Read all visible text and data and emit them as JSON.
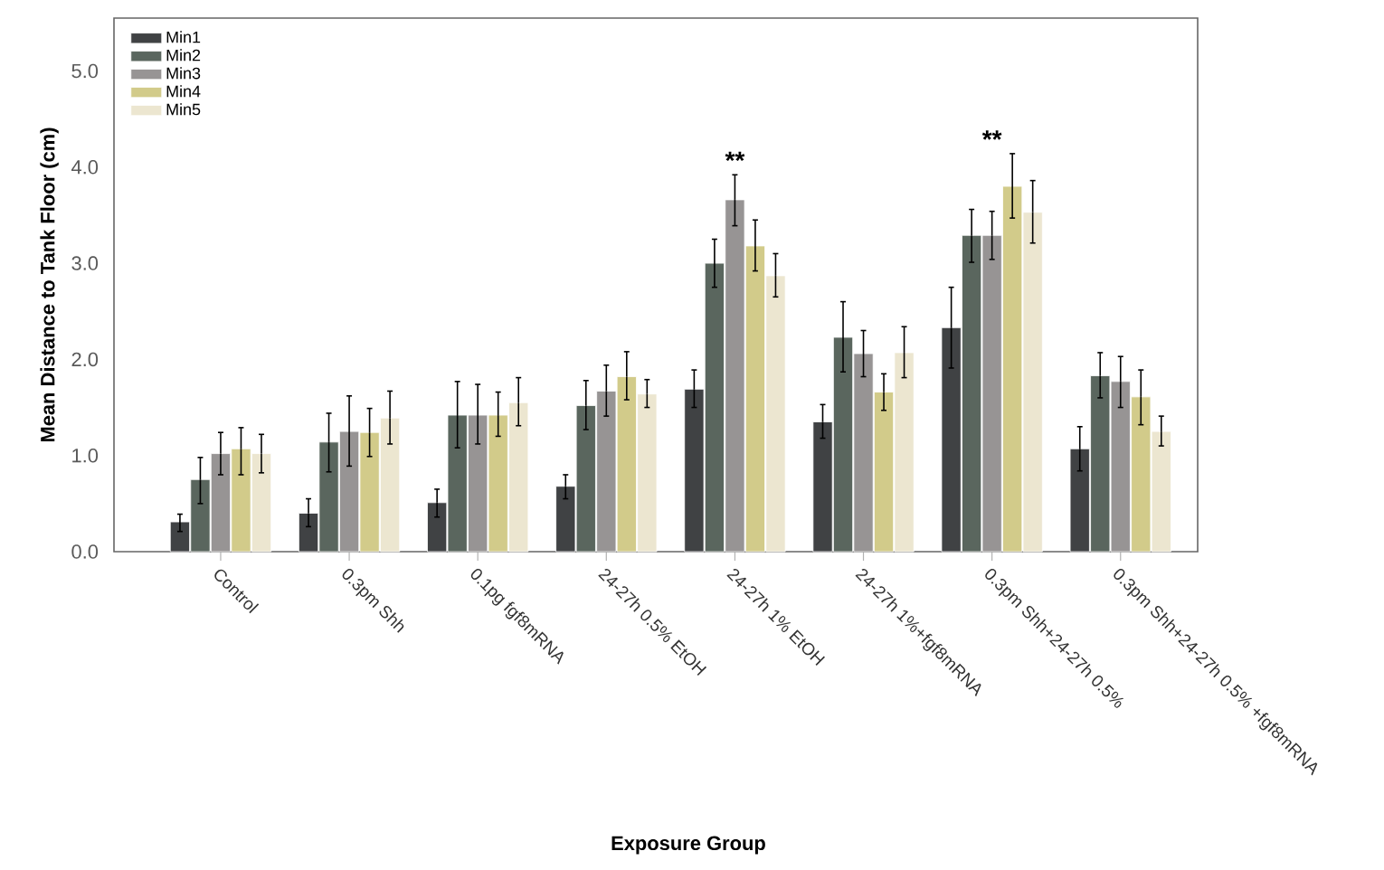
{
  "chart_data": {
    "type": "bar",
    "xlabel": "Exposure Group",
    "ylabel": "Mean Distance to Tank Floor (cm)",
    "categories": [
      "Control",
      "0.3pm Shh",
      "0.1pg fgf8mRNA",
      "24-27h 0.5% EtOH",
      "24-27h 1% EtOH",
      "24-27h 1%+fgf8mRNA",
      "0.3pm Shh+24-27h 0.5%",
      "0.3pm Shh+24-27h 0.5% +fgf8mRNA"
    ],
    "series": [
      {
        "name": "Min1",
        "color": "#404244",
        "values": [
          0.31,
          0.4,
          0.51,
          0.68,
          1.69,
          1.35,
          2.33,
          1.07
        ],
        "errors": [
          [
            0.21,
            0.39
          ],
          [
            0.26,
            0.55
          ],
          [
            0.36,
            0.65
          ],
          [
            0.55,
            0.8
          ],
          [
            1.5,
            1.89
          ],
          [
            1.18,
            1.53
          ],
          [
            1.91,
            2.75
          ],
          [
            0.84,
            1.3
          ]
        ]
      },
      {
        "name": "Min2",
        "color": "#5a665e",
        "values": [
          0.75,
          1.14,
          1.42,
          1.52,
          3.0,
          2.23,
          3.29,
          1.83
        ],
        "errors": [
          [
            0.5,
            0.98
          ],
          [
            0.83,
            1.44
          ],
          [
            1.08,
            1.77
          ],
          [
            1.27,
            1.78
          ],
          [
            2.75,
            3.25
          ],
          [
            1.87,
            2.6
          ],
          [
            3.01,
            3.56
          ],
          [
            1.6,
            2.07
          ]
        ]
      },
      {
        "name": "Min3",
        "color": "#979494",
        "values": [
          1.02,
          1.25,
          1.42,
          1.67,
          3.66,
          2.06,
          3.29,
          1.77
        ],
        "errors": [
          [
            0.8,
            1.24
          ],
          [
            0.89,
            1.62
          ],
          [
            1.12,
            1.74
          ],
          [
            1.41,
            1.94
          ],
          [
            3.39,
            3.92
          ],
          [
            1.82,
            2.3
          ],
          [
            3.04,
            3.54
          ],
          [
            1.5,
            2.03
          ]
        ]
      },
      {
        "name": "Min4",
        "color": "#d2cb8a",
        "values": [
          1.07,
          1.24,
          1.42,
          1.82,
          3.18,
          1.66,
          3.8,
          1.61
        ],
        "errors": [
          [
            0.8,
            1.29
          ],
          [
            0.99,
            1.49
          ],
          [
            1.2,
            1.66
          ],
          [
            1.58,
            2.08
          ],
          [
            2.92,
            3.45
          ],
          [
            1.47,
            1.85
          ],
          [
            3.47,
            4.14
          ],
          [
            1.32,
            1.89
          ]
        ]
      },
      {
        "name": "Min5",
        "color": "#ece6d0",
        "values": [
          1.02,
          1.39,
          1.55,
          1.64,
          2.87,
          2.07,
          3.53,
          1.25
        ],
        "errors": [
          [
            0.82,
            1.22
          ],
          [
            1.12,
            1.67
          ],
          [
            1.31,
            1.81
          ],
          [
            1.5,
            1.79
          ],
          [
            2.65,
            3.1
          ],
          [
            1.81,
            2.34
          ],
          [
            3.21,
            3.86
          ],
          [
            1.1,
            1.41
          ]
        ]
      }
    ],
    "ylim": [
      0,
      5.55
    ],
    "yticks": [
      {
        "value": 0,
        "label": "0.0"
      },
      {
        "value": 1,
        "label": "1.0"
      },
      {
        "value": 2,
        "label": "2.0"
      },
      {
        "value": 3,
        "label": "3.0"
      },
      {
        "value": 4,
        "label": "4.0"
      },
      {
        "value": 5,
        "label": "5.0"
      }
    ],
    "annotations": [
      "**",
      "**"
    ],
    "legend": "top left",
    "grid": false
  }
}
